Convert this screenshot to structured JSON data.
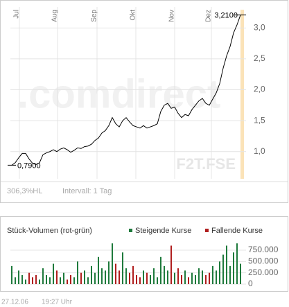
{
  "chart_data": [
    {
      "type": "line",
      "watermark": ".comdirect",
      "symbol": "F2T.FSE",
      "annotations": [
        "3,2100",
        "0,7900"
      ],
      "footer": [
        "306,3%HL",
        "Intervall: 1 Tag"
      ],
      "color": "#000000",
      "xlim": [
        0,
        66
      ],
      "xticks": [
        {
          "value": 2.2,
          "label": "Jul"
        },
        {
          "value": 13.2,
          "label": "Aug"
        },
        {
          "value": 24.6,
          "label": "Sep"
        },
        {
          "value": 35.8,
          "label": "Okt"
        },
        {
          "value": 47,
          "label": "Nov"
        },
        {
          "value": 57.6,
          "label": "Dez"
        }
      ],
      "ylim": [
        0.56,
        3.34
      ],
      "yticks": [
        {
          "value": 1.0,
          "label": "1,0"
        },
        {
          "value": 1.5,
          "label": "1,5"
        },
        {
          "value": 2.0,
          "label": "2,0"
        },
        {
          "value": 2.5,
          "label": "2,5"
        },
        {
          "value": 3.0,
          "label": "3,0"
        }
      ],
      "grid": true,
      "values": [
        0.78,
        0.82,
        0.9,
        0.97,
        0.97,
        0.88,
        0.81,
        0.79,
        0.82,
        0.95,
        0.98,
        1.0,
        1.03,
        1.0,
        1.04,
        1.06,
        1.03,
        0.99,
        1.02,
        1.06,
        1.05,
        1.08,
        1.09,
        1.12,
        1.18,
        1.22,
        1.3,
        1.34,
        1.42,
        1.55,
        1.45,
        1.4,
        1.5,
        1.55,
        1.48,
        1.42,
        1.4,
        1.38,
        1.42,
        1.38,
        1.4,
        1.42,
        1.45,
        1.65,
        1.75,
        1.78,
        1.7,
        1.72,
        1.62,
        1.55,
        1.6,
        1.58,
        1.68,
        1.75,
        1.82,
        1.86,
        1.78,
        1.75,
        1.85,
        1.95,
        2.1,
        2.35,
        2.55,
        2.7,
        2.92,
        3.05,
        3.21
      ]
    },
    {
      "type": "bar",
      "title": "Stück-Volumen (rot-grün)",
      "xlim": [
        0,
        66
      ],
      "ylim": [
        0,
        918000
      ],
      "yticks": [
        0,
        {
          "value": 250000,
          "label": "250.000"
        },
        {
          "value": 500000,
          "label": "500.000"
        },
        {
          "value": 750000,
          "label": "750.000"
        }
      ],
      "series": [
        {
          "name": "Steigende Kurse",
          "color": "#1e7a3c",
          "values": [
            400000,
            150000,
            300000,
            200000,
            100000,
            null,
            null,
            null,
            100000,
            350000,
            200000,
            150000,
            450000,
            null,
            150000,
            250000,
            null,
            null,
            150000,
            500000,
            null,
            300000,
            150000,
            400000,
            250000,
            600000,
            350000,
            300000,
            500000,
            900000,
            null,
            null,
            700000,
            350000,
            null,
            null,
            null,
            null,
            300000,
            null,
            200000,
            350000,
            150000,
            600000,
            400000,
            300000,
            null,
            250000,
            null,
            null,
            300000,
            null,
            250000,
            200000,
            350000,
            300000,
            null,
            null,
            400000,
            300000,
            500000,
            650000,
            850000,
            400000,
            700000,
            900000,
            450000
          ]
        },
        {
          "name": "Fallende Kurse",
          "color": "#b01e1e",
          "values": [
            null,
            null,
            null,
            null,
            null,
            250000,
            150000,
            200000,
            null,
            null,
            null,
            null,
            null,
            300000,
            null,
            null,
            100000,
            200000,
            null,
            null,
            250000,
            null,
            null,
            null,
            null,
            null,
            null,
            null,
            null,
            null,
            450000,
            300000,
            null,
            null,
            250000,
            400000,
            200000,
            150000,
            null,
            250000,
            null,
            null,
            null,
            null,
            null,
            null,
            850000,
            null,
            350000,
            200000,
            null,
            150000,
            null,
            null,
            null,
            null,
            200000,
            250000,
            null,
            null,
            null,
            null,
            null,
            null,
            null,
            null,
            null
          ]
        }
      ]
    }
  ],
  "timestamp": [
    "27.12.06",
    "19:27 Uhr"
  ]
}
